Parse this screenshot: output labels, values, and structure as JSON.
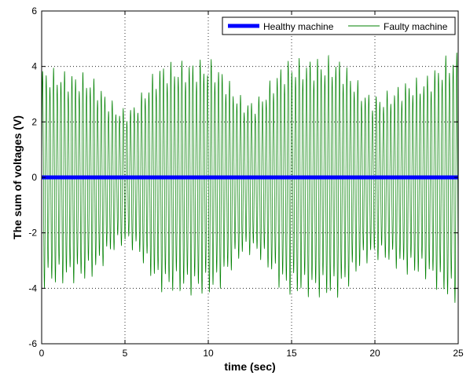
{
  "chart_data": {
    "type": "line",
    "title": "",
    "xlabel": "time (sec)",
    "ylabel": "The sum of voltages (V)",
    "xlim": [
      0,
      25
    ],
    "ylim": [
      -6,
      6
    ],
    "xticks": [
      0,
      5,
      10,
      15,
      20,
      25
    ],
    "yticks": [
      -6,
      -4,
      -2,
      0,
      2,
      4,
      6
    ],
    "grid": true,
    "legend_position": "top-right",
    "series": [
      {
        "name": "Healthy machine",
        "color": "#0000ff",
        "description_values": "constant near zero",
        "x": [
          0,
          25
        ],
        "y": [
          0,
          0
        ]
      },
      {
        "name": "Faulty machine",
        "color": "#008000",
        "oscillation_period_sec": 0.22,
        "envelope": {
          "t": [
            0,
            2.5,
            5,
            7.5,
            10,
            12.5,
            15,
            17.5,
            20,
            22.5,
            25
          ],
          "amplitude": [
            4.0,
            3.8,
            2.5,
            4.2,
            4.3,
            2.8,
            4.3,
            4.4,
            3.0,
            3.6,
            4.6
          ]
        }
      }
    ]
  }
}
